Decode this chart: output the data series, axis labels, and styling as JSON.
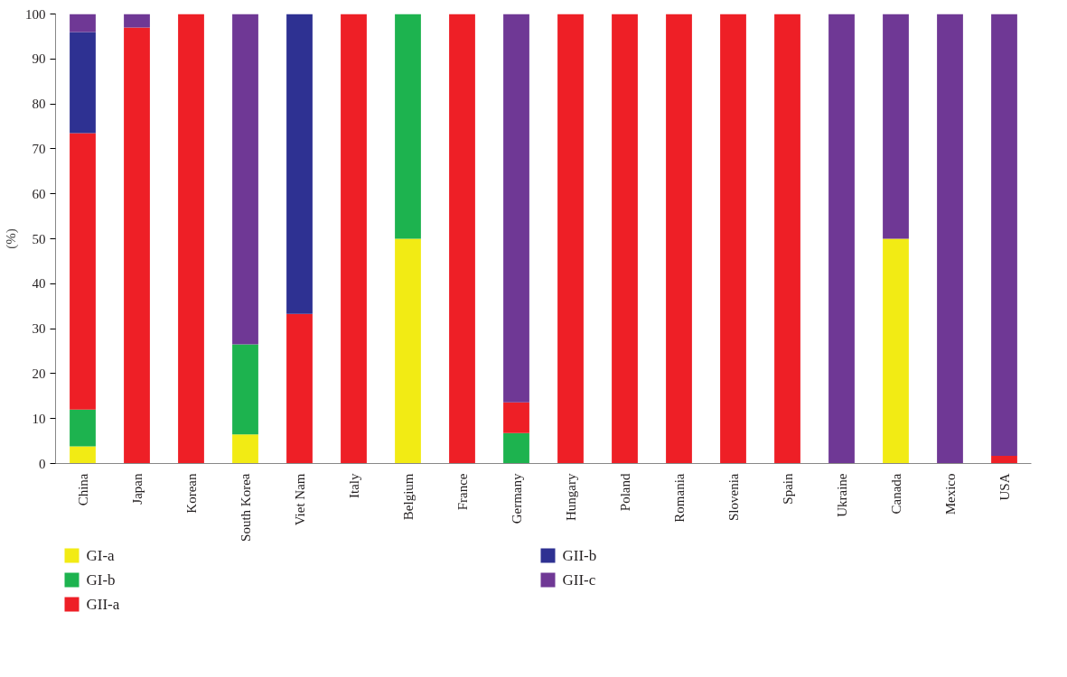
{
  "chart_data": {
    "type": "bar",
    "stacked": true,
    "ylabel": "(%)",
    "categories": [
      "China",
      "Japan",
      "Korean",
      "South Korea",
      "Viet Nam",
      "Italy",
      "Belgium",
      "France",
      "Germany",
      "Hungary",
      "Poland",
      "Romania",
      "Slovenia",
      "Spain",
      "Ukraine",
      "Canada",
      "Mexico",
      "USA"
    ],
    "series": [
      {
        "name": "GI-a",
        "color": "#f2eb14",
        "values": [
          3.8,
          null,
          null,
          6.5,
          null,
          null,
          50,
          null,
          null,
          null,
          null,
          null,
          null,
          null,
          null,
          50,
          null,
          null
        ]
      },
      {
        "name": "GI-b",
        "color": "#1db34f",
        "values": [
          8.2,
          null,
          null,
          20,
          null,
          null,
          50,
          null,
          6.8,
          null,
          null,
          null,
          null,
          null,
          null,
          null,
          null,
          null
        ]
      },
      {
        "name": "GII-a",
        "color": "#ee1f26",
        "values": [
          61.5,
          97,
          100,
          null,
          33.3,
          100,
          null,
          100,
          6.8,
          100,
          100,
          100,
          100,
          100,
          null,
          null,
          null,
          1.7
        ]
      },
      {
        "name": "GII-b",
        "color": "#2e3192",
        "values": [
          22.5,
          null,
          null,
          null,
          66.7,
          null,
          null,
          null,
          null,
          null,
          null,
          null,
          null,
          null,
          null,
          null,
          null,
          null
        ]
      },
      {
        "name": "GII-c",
        "color": "#6f3895",
        "values": [
          4.0,
          3,
          null,
          73.5,
          null,
          null,
          null,
          null,
          86.4,
          null,
          null,
          null,
          null,
          null,
          100,
          50,
          100,
          98.3
        ]
      }
    ],
    "ylim": [
      0,
      100
    ],
    "yticks": [
      0,
      10,
      20,
      30,
      40,
      50,
      60,
      70,
      80,
      90,
      100
    ],
    "grid": false,
    "legend": "bottom"
  }
}
